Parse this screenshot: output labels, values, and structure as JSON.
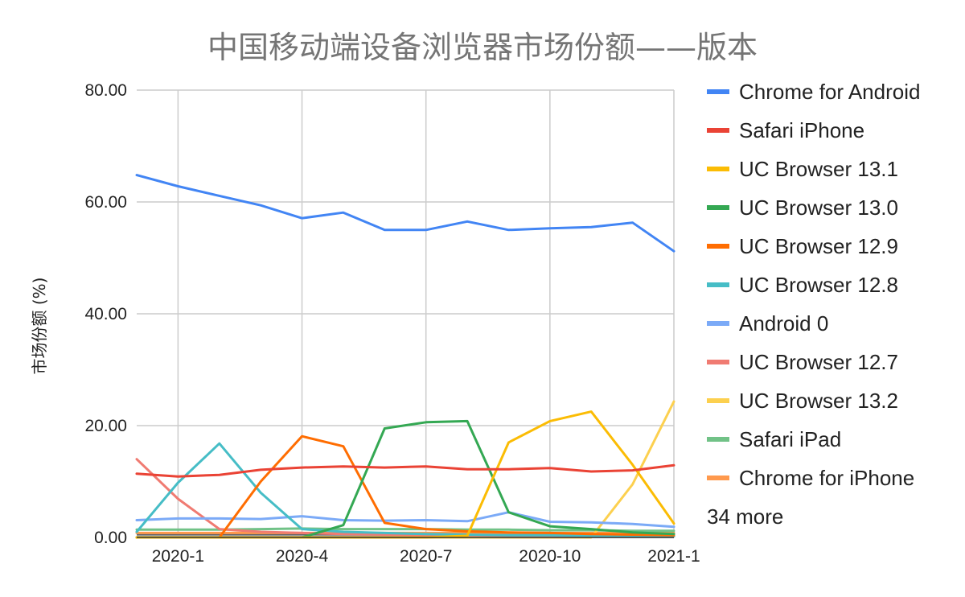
{
  "chart_data": {
    "type": "line",
    "title": "中国移动端设备浏览器市场份额——版本",
    "ylabel": "市场份额 (%)",
    "xlabel": "",
    "ylim": [
      0,
      80
    ],
    "y_ticks": [
      "0.00",
      "20.00",
      "40.00",
      "60.00",
      "80.00"
    ],
    "x_tick_labels": [
      "2020-1",
      "2020-4",
      "2020-7",
      "2020-10",
      "2021-1"
    ],
    "x": [
      "2019-12",
      "2020-1",
      "2020-2",
      "2020-3",
      "2020-4",
      "2020-5",
      "2020-6",
      "2020-7",
      "2020-8",
      "2020-9",
      "2020-10",
      "2020-11",
      "2020-12",
      "2021-1"
    ],
    "grid": true,
    "legend_position": "right",
    "legend_more": "34 more",
    "series": [
      {
        "name": "Chrome for Android",
        "color": "#4285f4",
        "values": [
          64.8,
          62.8,
          61.1,
          59.4,
          57.1,
          58.1,
          55.0,
          55.0,
          56.5,
          55.0,
          55.3,
          55.5,
          56.3,
          51.2
        ]
      },
      {
        "name": "Safari iPhone",
        "color": "#ea4335",
        "values": [
          11.4,
          10.9,
          11.2,
          12.1,
          12.5,
          12.7,
          12.5,
          12.7,
          12.2,
          12.2,
          12.4,
          11.8,
          12.0,
          12.9
        ]
      },
      {
        "name": "UC Browser 13.1",
        "color": "#fbbc04",
        "values": [
          0.0,
          0.0,
          0.0,
          0.0,
          0.0,
          0.0,
          0.0,
          0.0,
          0.3,
          17.0,
          20.8,
          22.5,
          13.0,
          2.5
        ]
      },
      {
        "name": "UC Browser 13.0",
        "color": "#34a853",
        "values": [
          0.0,
          0.0,
          0.0,
          0.0,
          0.0,
          2.2,
          19.5,
          20.6,
          20.8,
          4.5,
          2.0,
          1.5,
          0.9,
          0.6
        ]
      },
      {
        "name": "UC Browser 12.9",
        "color": "#ff6d01",
        "values": [
          0.0,
          0.0,
          0.0,
          10.0,
          18.1,
          16.3,
          2.6,
          1.5,
          1.1,
          0.9,
          0.8,
          0.6,
          0.5,
          0.4
        ]
      },
      {
        "name": "UC Browser 12.8",
        "color": "#46bdc6",
        "values": [
          1.0,
          9.8,
          16.8,
          8.0,
          1.5,
          1.0,
          0.8,
          0.6,
          0.5,
          0.4,
          0.4,
          0.3,
          0.3,
          0.2
        ]
      },
      {
        "name": "Android 0",
        "color": "#7baaf7",
        "values": [
          3.1,
          3.4,
          3.4,
          3.3,
          3.8,
          3.1,
          3.0,
          3.1,
          2.9,
          4.5,
          2.8,
          2.7,
          2.4,
          1.9
        ]
      },
      {
        "name": "UC Browser 12.7",
        "color": "#f07b72",
        "values": [
          14.0,
          6.9,
          1.5,
          1.0,
          0.8,
          0.6,
          0.5,
          0.4,
          0.4,
          0.3,
          0.3,
          0.2,
          0.2,
          0.2
        ]
      },
      {
        "name": "UC Browser 13.2",
        "color": "#fcd04f",
        "values": [
          0.0,
          0.0,
          0.0,
          0.0,
          0.0,
          0.0,
          0.0,
          0.0,
          0.0,
          0.0,
          0.0,
          0.0,
          9.5,
          24.3
        ]
      },
      {
        "name": "Safari iPad",
        "color": "#71c287",
        "values": [
          1.4,
          1.4,
          1.4,
          1.5,
          1.6,
          1.5,
          1.5,
          1.5,
          1.4,
          1.4,
          1.3,
          1.3,
          1.2,
          1.2
        ]
      },
      {
        "name": "Chrome for iPhone",
        "color": "#ff994d",
        "values": [
          0.8,
          0.8,
          0.8,
          0.8,
          0.8,
          0.8,
          0.8,
          0.8,
          0.8,
          0.8,
          0.8,
          0.8,
          0.8,
          0.8
        ]
      }
    ],
    "other_lines": [
      {
        "color": "#202124",
        "values": [
          0.3,
          0.3,
          0.3,
          0.3,
          0.3,
          0.3,
          0.4,
          0.5,
          0.5,
          0.5,
          0.5,
          0.5,
          0.6,
          0.6
        ]
      },
      {
        "color": "#5f6368",
        "values": [
          0.5,
          0.5,
          0.5,
          0.5,
          0.5,
          0.5,
          0.5,
          0.5,
          0.5,
          0.5,
          0.5,
          0.5,
          0.5,
          0.5
        ]
      },
      {
        "color": "#9aa0a6",
        "values": [
          0.2,
          0.2,
          0.2,
          0.2,
          0.2,
          0.2,
          0.2,
          0.2,
          0.2,
          0.2,
          0.2,
          0.2,
          0.2,
          0.2
        ]
      }
    ]
  }
}
